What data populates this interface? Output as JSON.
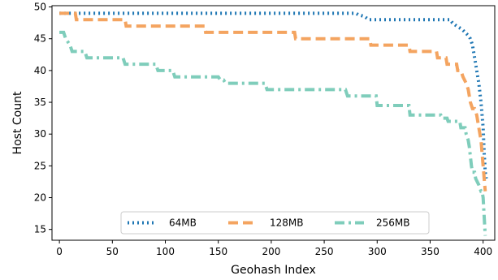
{
  "chart_data": {
    "type": "line",
    "xlabel": "Geohash Index",
    "ylabel": "Host Count",
    "xlim": [
      -7,
      411
    ],
    "ylim": [
      13.3,
      50.2
    ],
    "xticks": [
      0,
      50,
      100,
      150,
      200,
      250,
      300,
      350,
      400
    ],
    "yticks": [
      15,
      20,
      25,
      30,
      35,
      40,
      45,
      50
    ],
    "legend_position": "bottom-center",
    "series": [
      {
        "name": "64MB",
        "color": "#1f77b4",
        "style": "dotted",
        "x": [
          0,
          280,
          282,
          288,
          292,
          369,
          371,
          375,
          380,
          383,
          386,
          388,
          390,
          392,
          394,
          396,
          398,
          400,
          401,
          402,
          403
        ],
        "y": [
          49,
          49,
          48.8,
          48.5,
          48,
          48,
          47.5,
          47,
          46.5,
          46,
          45.5,
          45,
          44,
          42,
          40,
          38,
          35,
          31,
          27,
          24,
          23
        ]
      },
      {
        "name": "128MB",
        "color": "#f4a460",
        "style": "dashed",
        "x": [
          0,
          15,
          16,
          62,
          63,
          137,
          138,
          222,
          223,
          293,
          294,
          330,
          331,
          356,
          357,
          365,
          366,
          375,
          376,
          379,
          381,
          384,
          386,
          388,
          390,
          392,
          394,
          396,
          398,
          399,
          400,
          401,
          402
        ],
        "y": [
          49,
          49,
          48,
          48,
          47,
          47,
          46,
          46,
          45,
          45,
          44,
          44,
          43,
          43,
          42,
          42,
          41,
          41,
          40,
          40,
          39,
          38,
          37,
          35,
          34,
          34,
          33,
          31,
          29,
          27,
          25,
          23,
          21
        ]
      },
      {
        "name": "256MB",
        "color": "#7fcdbb",
        "style": "dashdot",
        "x": [
          0,
          4,
          6,
          10,
          12,
          24,
          26,
          60,
          62,
          91,
          93,
          107,
          109,
          150,
          152,
          155,
          157,
          194,
          196,
          270,
          272,
          299,
          300,
          330,
          331,
          360,
          361,
          366,
          367,
          378,
          379,
          383,
          384,
          386,
          387,
          389,
          390,
          392,
          393,
          396,
          397,
          398,
          399,
          400,
          401,
          402
        ],
        "y": [
          46,
          46,
          45,
          44,
          43,
          43,
          42,
          42,
          41,
          41,
          40,
          40,
          39,
          39,
          38.5,
          38.5,
          38,
          38,
          37,
          37,
          36,
          36,
          34.5,
          34.5,
          33,
          33,
          32.5,
          32.5,
          32,
          32,
          31,
          31,
          30,
          29,
          28,
          25,
          24,
          24,
          23,
          22,
          21.5,
          21,
          21,
          20,
          17,
          14
        ]
      }
    ]
  }
}
